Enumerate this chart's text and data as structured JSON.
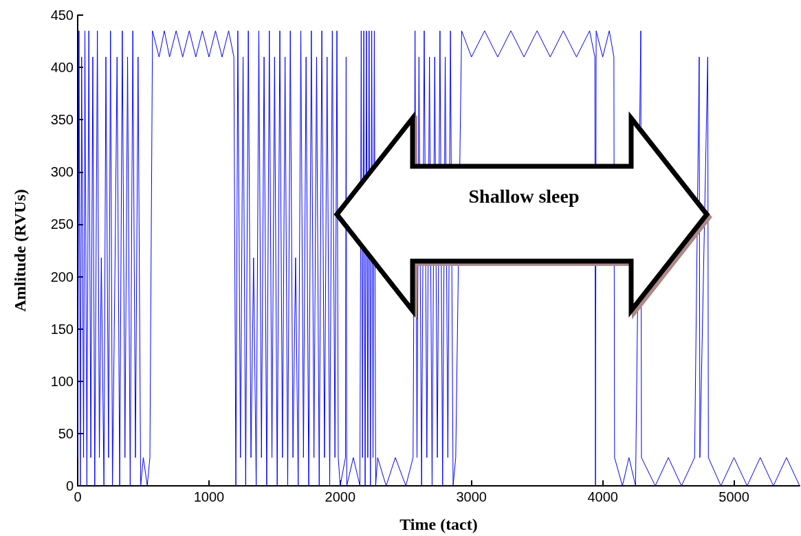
{
  "chart_data": {
    "type": "line",
    "xlabel": "Time (tact)",
    "ylabel": "Amlitude (RVUs)",
    "annotations": [
      "Shallow sleep"
    ],
    "xlim": [
      0,
      5500
    ],
    "xticks": [
      0,
      1000,
      2000,
      3000,
      4000,
      5000
    ],
    "ylim": [
      0,
      450
    ],
    "yticks": [
      0,
      50,
      100,
      150,
      200,
      250,
      300,
      350,
      400,
      450
    ],
    "grid": false,
    "marker": "none",
    "line_style": "solid",
    "series": [
      {
        "color": "#0000ff",
        "x": [
          0,
          10,
          20,
          30,
          45,
          55,
          70,
          85,
          100,
          115,
          130,
          150,
          165,
          180,
          200,
          215,
          235,
          250,
          265,
          285,
          300,
          320,
          340,
          360,
          380,
          400,
          420,
          440,
          460,
          480,
          500,
          530,
          550,
          570,
          620,
          660,
          700,
          750,
          800,
          850,
          900,
          950,
          1000,
          1050,
          1100,
          1150,
          1190,
          1205,
          1220,
          1240,
          1260,
          1280,
          1300,
          1320,
          1340,
          1360,
          1380,
          1400,
          1420,
          1440,
          1460,
          1480,
          1500,
          1520,
          1540,
          1560,
          1580,
          1600,
          1620,
          1640,
          1660,
          1680,
          1700,
          1720,
          1740,
          1760,
          1780,
          1800,
          1820,
          1840,
          1860,
          1880,
          1900,
          1920,
          1940,
          1960,
          1975,
          1985,
          2000,
          2040,
          2045,
          2050,
          2100,
          2150,
          2160,
          2170,
          2180,
          2190,
          2200,
          2210,
          2220,
          2230,
          2240,
          2250,
          2260,
          2270,
          2285,
          2350,
          2420,
          2500,
          2555,
          2570,
          2585,
          2600,
          2620,
          2640,
          2660,
          2680,
          2700,
          2720,
          2740,
          2760,
          2780,
          2800,
          2820,
          2840,
          2860,
          2880,
          2925,
          3000,
          3100,
          3200,
          3300,
          3400,
          3500,
          3600,
          3700,
          3800,
          3900,
          3940,
          3945,
          3950,
          4000,
          4050,
          4085,
          4090,
          4150,
          4200,
          4250,
          4290,
          4295,
          4400,
          4500,
          4600,
          4700,
          4735,
          4740,
          4800,
          4805,
          4900,
          5000,
          5100,
          5200,
          5300,
          5400,
          5500
        ],
        "values": [
          27,
          435,
          0,
          410,
          27,
          435,
          0,
          435,
          27,
          410,
          0,
          435,
          27,
          218,
          0,
          410,
          27,
          435,
          0,
          218,
          410,
          0,
          435,
          27,
          410,
          0,
          435,
          27,
          410,
          0,
          27,
          0,
          27,
          435,
          410,
          435,
          410,
          435,
          410,
          435,
          410,
          435,
          410,
          435,
          410,
          435,
          410,
          0,
          435,
          27,
          410,
          0,
          435,
          27,
          218,
          0,
          435,
          27,
          410,
          0,
          435,
          27,
          410,
          0,
          435,
          27,
          410,
          0,
          435,
          27,
          218,
          0,
          435,
          27,
          410,
          0,
          435,
          27,
          410,
          0,
          435,
          27,
          410,
          0,
          435,
          27,
          435,
          27,
          0,
          27,
          410,
          0,
          27,
          0,
          435,
          27,
          435,
          0,
          435,
          27,
          435,
          0,
          435,
          27,
          435,
          0,
          27,
          0,
          27,
          0,
          27,
          435,
          27,
          410,
          0,
          435,
          27,
          410,
          0,
          410,
          27,
          435,
          0,
          410,
          27,
          435,
          0,
          27,
          435,
          410,
          435,
          410,
          435,
          410,
          435,
          410,
          435,
          410,
          435,
          410,
          0,
          435,
          410,
          435,
          410,
          27,
          0,
          27,
          0,
          435,
          27,
          0,
          27,
          0,
          27,
          410,
          27,
          410,
          27,
          0,
          27,
          0,
          27,
          0,
          27,
          0
        ]
      }
    ]
  }
}
